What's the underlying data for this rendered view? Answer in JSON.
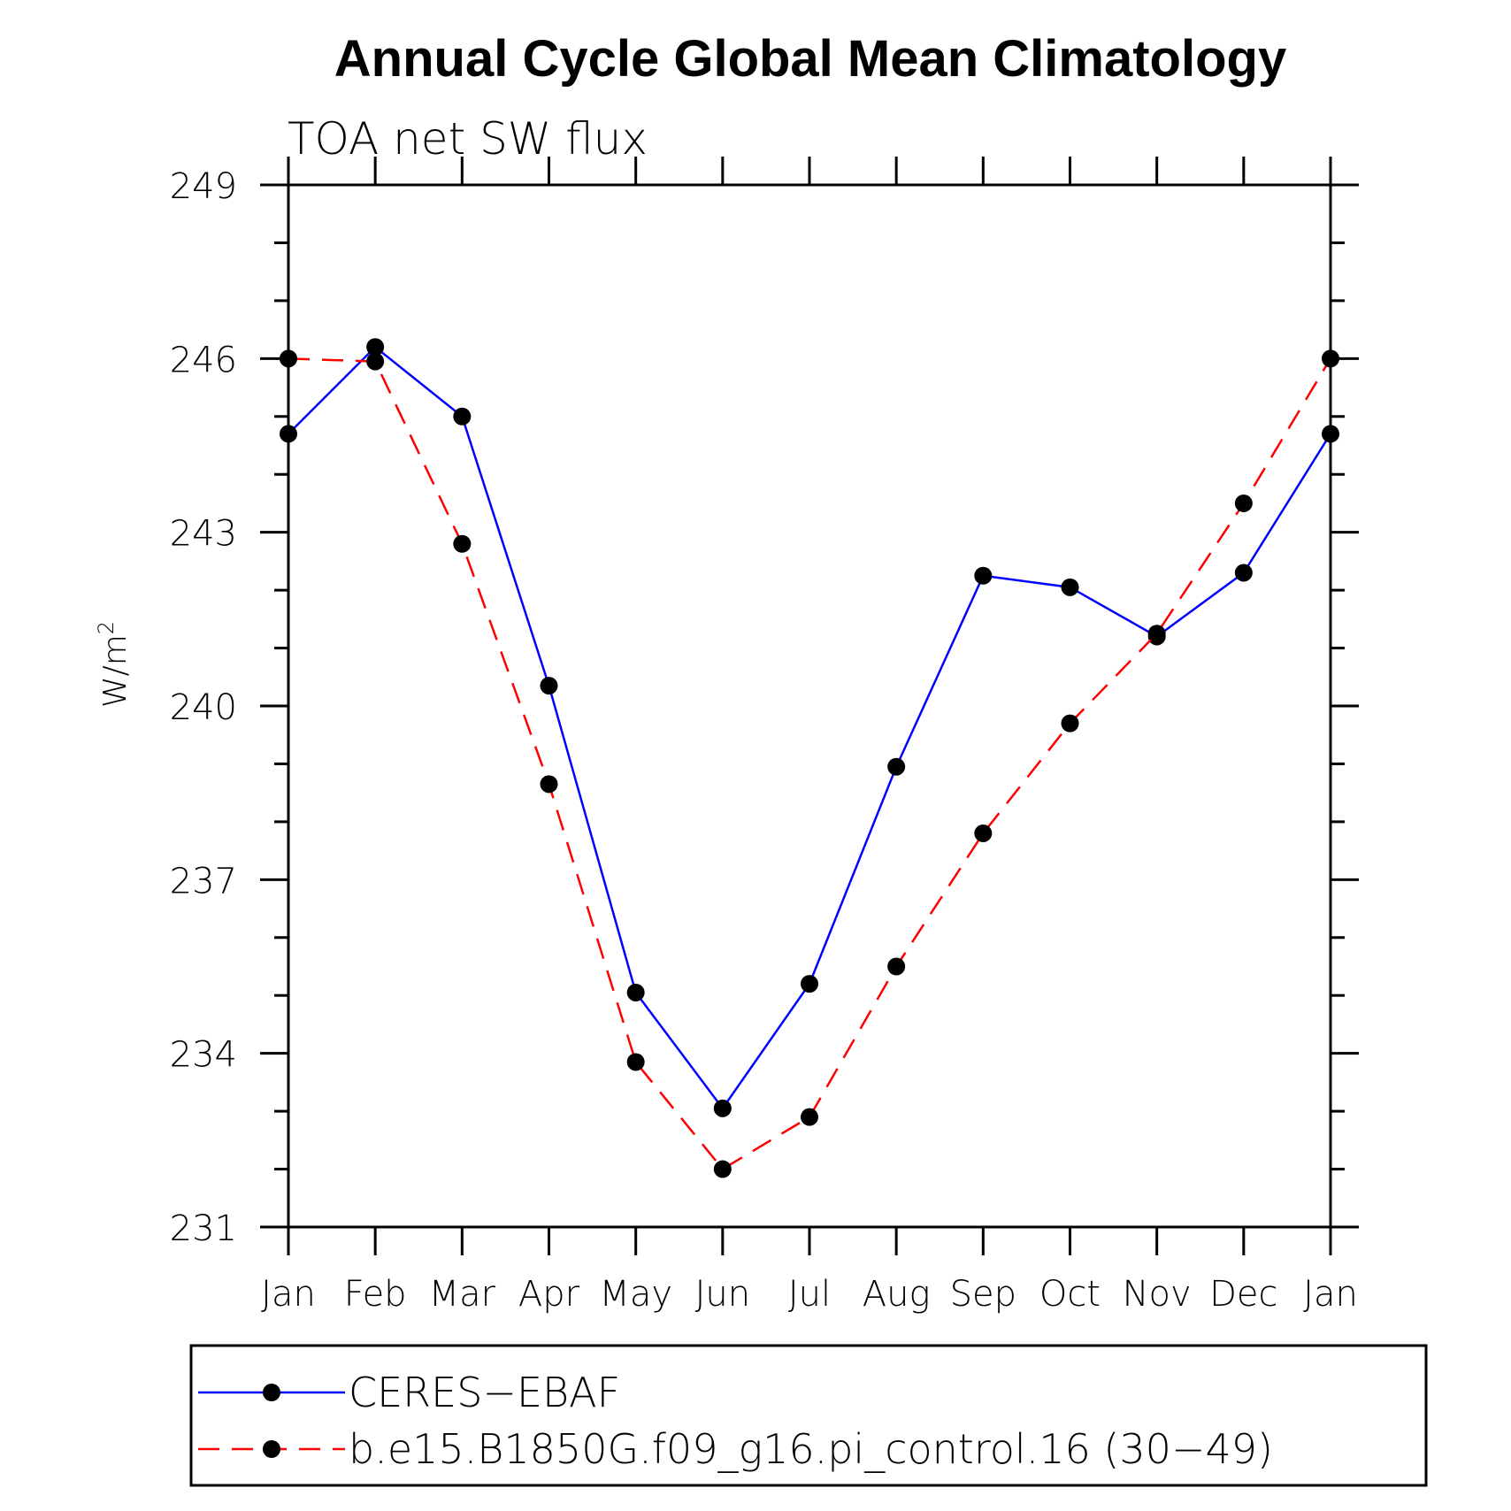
{
  "chart_data": {
    "type": "line",
    "title": "Annual Cycle Global Mean Climatology",
    "subtitle": "TOA net SW flux",
    "ylabel_main": "W/m",
    "ylabel_sup": "2",
    "xlabel": "",
    "categories": [
      "Jan",
      "Feb",
      "Mar",
      "Apr",
      "May",
      "Jun",
      "Jul",
      "Aug",
      "Sep",
      "Oct",
      "Nov",
      "Dec",
      "Jan"
    ],
    "ylim": [
      231,
      249
    ],
    "yticks": [
      231,
      234,
      237,
      240,
      243,
      246,
      249
    ],
    "yticks_labels": [
      "231",
      "234",
      "237",
      "240",
      "243",
      "246",
      "249"
    ],
    "grid": false,
    "legend_position": "bottom",
    "series": [
      {
        "name": "CERES−EBAF",
        "color": "#0000ff",
        "dash": "solid",
        "marker": "filled-circle",
        "values": [
          244.7,
          246.2,
          245.0,
          240.35,
          235.05,
          233.05,
          235.2,
          238.95,
          242.25,
          242.05,
          241.2,
          242.3,
          244.7
        ]
      },
      {
        "name": "b.e15.B1850G.f09_g16.pi_control.16 (30−49)",
        "color": "#ff0000",
        "dash": "dashed",
        "marker": "filled-circle",
        "values": [
          246.0,
          245.95,
          242.8,
          238.65,
          233.85,
          232.0,
          232.9,
          235.5,
          237.8,
          239.7,
          241.25,
          243.5,
          246.0
        ]
      }
    ]
  }
}
